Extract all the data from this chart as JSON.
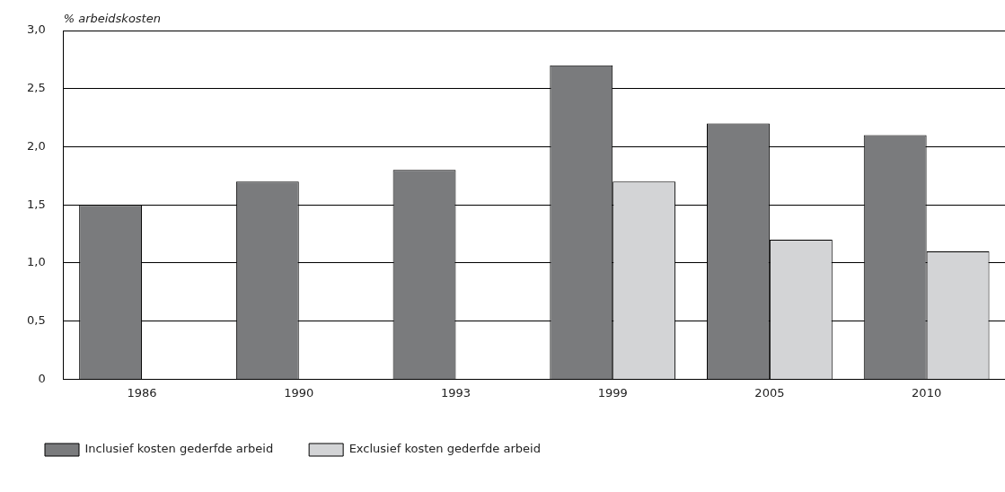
{
  "chart_data": {
    "type": "bar",
    "ylabel": "% arbeidskosten",
    "categories": [
      "1986",
      "1990",
      "1993",
      "1999",
      "2005",
      "2010"
    ],
    "series": [
      {
        "name": "Inclusief kosten gederfde arbeid",
        "color": "#7a7b7d",
        "values": [
          1.5,
          1.7,
          1.8,
          2.7,
          2.2,
          2.1
        ]
      },
      {
        "name": "Exclusief kosten gederfde arbeid",
        "color": "#d3d4d6",
        "values": [
          null,
          null,
          null,
          1.7,
          1.2,
          1.1
        ]
      }
    ],
    "ylim": [
      0,
      3.0
    ],
    "yticks": [
      0,
      {
        "value": 0.5,
        "label": "0,5"
      },
      {
        "value": 1.0,
        "label": "1,0"
      },
      {
        "value": 1.5,
        "label": "1,5"
      },
      {
        "value": 2.0,
        "label": "2,0"
      },
      {
        "value": 2.5,
        "label": "2,5"
      },
      {
        "value": 3.0,
        "label": "3,0"
      }
    ],
    "grid": "y",
    "legend": "bottom left"
  }
}
